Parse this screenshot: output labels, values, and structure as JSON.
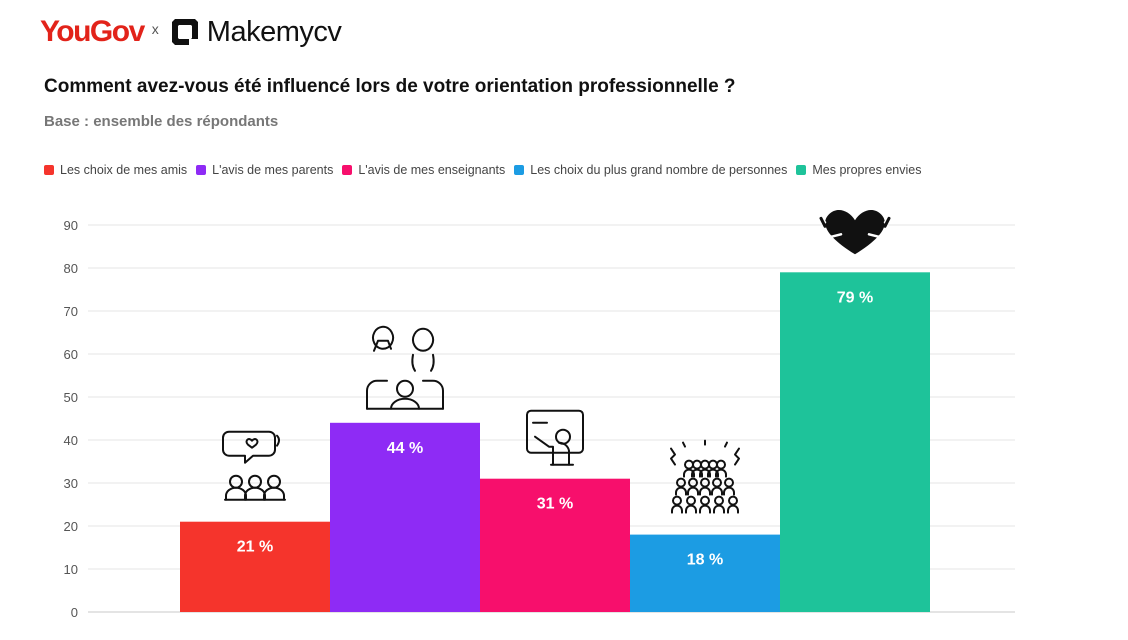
{
  "header": {
    "yougov_logo": "YouGov",
    "separator": "x",
    "makemycv_logo": "Makemycv"
  },
  "title": "Comment avez-vous été influencé lors de votre orientation professionnelle ?",
  "subtitle": "Base : ensemble des répondants",
  "chart_data": {
    "type": "bar",
    "title": "Comment avez-vous été influencé lors de votre orientation professionnelle ?",
    "subtitle": "Base : ensemble des répondants",
    "ylim": [
      0,
      90
    ],
    "yticks": [
      "0",
      "10",
      "20",
      "30",
      "40",
      "50",
      "60",
      "70",
      "80",
      "90"
    ],
    "grid": true,
    "legend_position": "top",
    "series": [
      {
        "name": "Les choix de mes amis",
        "value": 21,
        "label": "21 %",
        "color": "#f5342c",
        "icon": "friends-chat-icon"
      },
      {
        "name": "L'avis de mes parents",
        "value": 44,
        "label": "44 %",
        "color": "#8e2bf5",
        "icon": "parents-family-icon"
      },
      {
        "name": "L'avis de mes enseignants",
        "value": 31,
        "label": "31 %",
        "color": "#f70f6c",
        "icon": "teacher-board-icon"
      },
      {
        "name": "Les choix du plus grand nombre de personnes",
        "value": 18,
        "label": "18 %",
        "color": "#1c9ce3",
        "icon": "crowd-icon"
      },
      {
        "name": "Mes propres envies",
        "value": 79,
        "label": "79 %",
        "color": "#1ec39a",
        "icon": "heart-hug-icon"
      }
    ]
  }
}
